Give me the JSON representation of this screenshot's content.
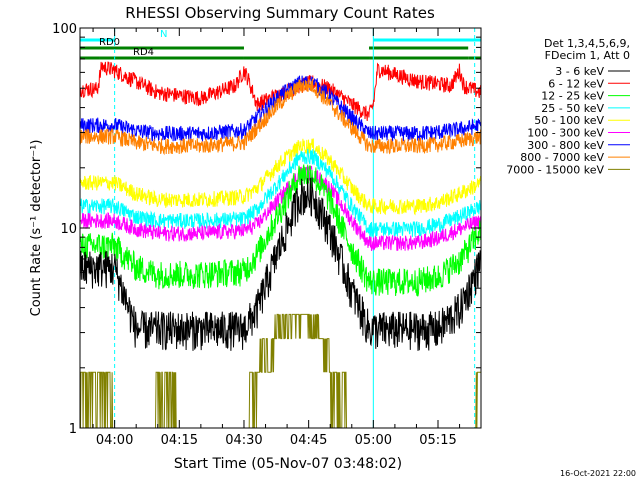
{
  "chart_data": {
    "type": "line",
    "title": "RHESSI Observing Summary Count Rates",
    "xlabel": "Start Time (05-Nov-07 03:48:02)",
    "ylabel": "Count Rate (s⁻¹ detector⁻¹)",
    "y_scale": "log",
    "ylim": [
      1,
      100
    ],
    "x_range_minutes": [
      -8.03,
      84.97
    ],
    "x_ticks": [
      {
        "label": "04:00",
        "minute": 0
      },
      {
        "label": "04:15",
        "minute": 15
      },
      {
        "label": "04:30",
        "minute": 30
      },
      {
        "label": "04:45",
        "minute": 45
      },
      {
        "label": "05:00",
        "minute": 60
      },
      {
        "label": "05:15",
        "minute": 75
      }
    ],
    "y_ticks": [
      {
        "label": "1",
        "value": 1
      },
      {
        "label": "10",
        "value": 10
      },
      {
        "label": "100",
        "value": 100
      }
    ],
    "legend_header": [
      "Det 1,3,4,5,6,9,",
      "FDecim 1, Att 0"
    ],
    "legend_position": "right",
    "series": [
      {
        "name": "3 - 6 keV",
        "color": "#000000",
        "x": [
          -8,
          0,
          5,
          10,
          20,
          30,
          33,
          38,
          43,
          46,
          50,
          55,
          59,
          63,
          70,
          75,
          80,
          85
        ],
        "y": [
          6.5,
          6.5,
          3.2,
          3.2,
          3.2,
          3.2,
          4,
          8,
          15,
          15,
          10,
          5,
          3.2,
          3.2,
          3.2,
          3.2,
          4,
          7
        ]
      },
      {
        "name": "6 - 12 keV",
        "color": "#ff0000",
        "x": [
          -8,
          -4,
          -3,
          0,
          10,
          20,
          28,
          30,
          31,
          33,
          38,
          43,
          46,
          50,
          55,
          59,
          60,
          61,
          70,
          78,
          80,
          81,
          85
        ],
        "y": [
          50,
          50,
          65,
          62,
          48,
          45,
          52,
          62,
          56,
          42,
          47,
          52,
          54,
          50,
          42,
          37,
          42,
          63,
          55,
          52,
          62,
          52,
          48
        ]
      },
      {
        "name": "12 - 25 keV",
        "color": "#00ff00",
        "x": [
          -8,
          0,
          5,
          10,
          20,
          30,
          33,
          38,
          43,
          46,
          50,
          55,
          59,
          63,
          70,
          75,
          80,
          85
        ],
        "y": [
          8.3,
          8.3,
          6.5,
          6,
          6,
          6.2,
          7.5,
          12,
          19,
          19,
          14,
          8,
          5.5,
          5.5,
          5.5,
          5.8,
          7,
          10
        ]
      },
      {
        "name": "25 - 50 keV",
        "color": "#00ffff",
        "x": [
          -8,
          0,
          5,
          10,
          20,
          30,
          33,
          38,
          43,
          46,
          50,
          55,
          59,
          63,
          70,
          75,
          80,
          85
        ],
        "y": [
          13,
          13,
          11.5,
          11,
          11,
          11.2,
          12.5,
          17,
          23,
          23,
          19,
          13,
          10,
          10,
          10,
          10.5,
          11.5,
          13
        ]
      },
      {
        "name": "50 - 100 keV",
        "color": "#ffff00",
        "x": [
          -8,
          0,
          5,
          10,
          20,
          30,
          33,
          38,
          43,
          46,
          50,
          55,
          59,
          63,
          70,
          75,
          80,
          85
        ],
        "y": [
          17,
          17,
          15,
          14,
          14,
          14.5,
          16,
          21,
          26,
          26,
          22,
          16,
          13,
          13,
          13,
          13.5,
          15,
          17
        ]
      },
      {
        "name": "100 - 300 keV",
        "color": "#ff00ff",
        "x": [
          -8,
          0,
          5,
          10,
          20,
          30,
          33,
          38,
          43,
          46,
          50,
          55,
          59,
          63,
          70,
          75,
          80,
          85
        ],
        "y": [
          11,
          11,
          10,
          9.5,
          9.5,
          9.8,
          10.5,
          14,
          19,
          19,
          16,
          11,
          8.5,
          8.5,
          8.5,
          9,
          10,
          11
        ]
      },
      {
        "name": "300 - 800 keV",
        "color": "#0000ff",
        "x": [
          -8,
          0,
          5,
          10,
          20,
          30,
          33,
          38,
          43,
          46,
          50,
          55,
          59,
          63,
          70,
          75,
          80,
          85
        ],
        "y": [
          33,
          33,
          31,
          30,
          30,
          31,
          36,
          46,
          54,
          54,
          46,
          36,
          30,
          30,
          30,
          30.5,
          31.5,
          33
        ]
      },
      {
        "name": "800 - 7000 keV",
        "color": "#ff8000",
        "x": [
          -8,
          0,
          5,
          10,
          20,
          30,
          33,
          38,
          43,
          46,
          50,
          55,
          59,
          63,
          70,
          75,
          80,
          85
        ],
        "y": [
          29,
          29,
          27,
          26,
          26,
          27,
          32,
          42,
          52,
          52,
          42,
          32,
          26,
          26,
          26,
          26.5,
          27.5,
          29
        ]
      },
      {
        "name": "7000 - 15000 keV",
        "color": "#808000",
        "x": [
          -8,
          -0.5,
          0,
          9,
          10,
          20,
          30,
          32,
          35,
          39,
          40,
          47,
          48,
          52,
          56,
          60,
          70,
          83,
          84,
          85
        ],
        "y": [
          1.9,
          1.9,
          1,
          1,
          1.9,
          1,
          1,
          1.9,
          2.8,
          3.7,
          3.7,
          3.7,
          2.8,
          1.9,
          1,
          1,
          1,
          1,
          1.9,
          1.9
        ]
      }
    ],
    "annotations": {
      "bars": [
        {
          "label": "N",
          "color": "#00ffff",
          "segments": [
            [
              -8.03,
              0
            ],
            [
              60,
              84.97
            ]
          ]
        },
        {
          "label": "RD0",
          "color": "#008000",
          "segments": [
            [
              -8.03,
              30
            ],
            [
              59,
              82
            ]
          ]
        },
        {
          "label": "RD4",
          "color": "#008000",
          "segments": [
            [
              -8.03,
              -3.5
            ],
            [
              -3.5,
              30
            ],
            [
              30,
              59
            ],
            [
              59,
              82
            ],
            [
              82,
              84.97
            ]
          ]
        }
      ],
      "vlines": [
        {
          "minute": -8.03,
          "color": "#00ffff",
          "style": "solid"
        },
        {
          "minute": 0,
          "color": "#00ffff",
          "style": "dashed"
        },
        {
          "minute": 60,
          "color": "#00ffff",
          "style": "solid"
        },
        {
          "minute": 83.5,
          "color": "#00ffff",
          "style": "dashed"
        }
      ]
    }
  },
  "footer": {
    "timestamp": "16-Oct-2021 22:00"
  }
}
